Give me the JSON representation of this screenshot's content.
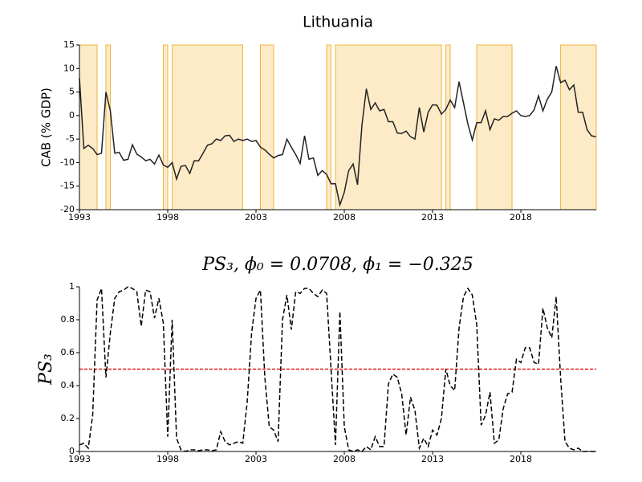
{
  "chart_data": [
    {
      "type": "line",
      "title": "Lithuania",
      "y_label": "CAB (% GDP)",
      "xlim": [
        1993,
        2022.27
      ],
      "xticks": [
        1993,
        1998,
        2003,
        2008,
        2013,
        2018
      ],
      "ylim": [
        -20,
        15
      ],
      "yticks": [
        -20,
        -15,
        -10,
        -5,
        0,
        5,
        10,
        15
      ],
      "shade_color": "#fdebc8",
      "shade_edge_color": "#f0b43c",
      "shaded_regions": [
        [
          1993,
          1994
        ],
        [
          1994.5,
          1994.75
        ],
        [
          1997.75,
          1998
        ],
        [
          1998.25,
          2002.25
        ],
        [
          2003.25,
          2004
        ],
        [
          2007,
          2007.25
        ],
        [
          2007.5,
          2013.5
        ],
        [
          2013.75,
          2014
        ],
        [
          2015.5,
          2017.5
        ],
        [
          2020.25,
          2022.27
        ]
      ],
      "x": [
        1993,
        1993.25,
        1993.5,
        1993.75,
        1994,
        1994.25,
        1994.5,
        1994.75,
        1995,
        1995.25,
        1995.5,
        1995.75,
        1996,
        1996.25,
        1996.5,
        1996.75,
        1997,
        1997.25,
        1997.5,
        1997.75,
        1998,
        1998.25,
        1998.5,
        1998.75,
        1999,
        1999.25,
        1999.5,
        1999.75,
        2000,
        2000.25,
        2000.5,
        2000.75,
        2001,
        2001.25,
        2001.5,
        2001.75,
        2002,
        2002.25,
        2002.5,
        2002.75,
        2003,
        2003.25,
        2003.5,
        2003.75,
        2004,
        2004.25,
        2004.5,
        2004.75,
        2005,
        2005.25,
        2005.5,
        2005.75,
        2006,
        2006.25,
        2006.5,
        2006.75,
        2007,
        2007.25,
        2007.5,
        2007.75,
        2008,
        2008.25,
        2008.5,
        2008.75,
        2009,
        2009.25,
        2009.5,
        2009.75,
        2010,
        2010.25,
        2010.5,
        2010.75,
        2011,
        2011.25,
        2011.5,
        2011.75,
        2012,
        2012.25,
        2012.5,
        2012.75,
        2013,
        2013.25,
        2013.5,
        2013.75,
        2014,
        2014.25,
        2014.5,
        2014.75,
        2015,
        2015.25,
        2015.5,
        2015.75,
        2016,
        2016.25,
        2016.5,
        2016.75,
        2017,
        2017.25,
        2017.5,
        2017.75,
        2018,
        2018.25,
        2018.5,
        2018.75,
        2019,
        2019.25,
        2019.5,
        2019.75,
        2020,
        2020.25,
        2020.5,
        2020.75,
        2021,
        2021.25,
        2021.5,
        2021.75,
        2022,
        2022.25
      ],
      "series": [
        {
          "color": "#222222",
          "dash": false,
          "values": [
            8,
            -7,
            -6.3,
            -7,
            -8.3,
            -8,
            5,
            1,
            -8,
            -7.8,
            -9.5,
            -9.3,
            -6.2,
            -8.2,
            -8.8,
            -9.6,
            -9.3,
            -10.3,
            -8.4,
            -10.5,
            -11,
            -10,
            -13.5,
            -10.8,
            -10.6,
            -12.3,
            -9.6,
            -9.6,
            -8,
            -6.3,
            -6,
            -5,
            -5.3,
            -4.3,
            -4.2,
            -5.5,
            -5,
            -5.3,
            -5,
            -5.5,
            -5.3,
            -6.7,
            -7.3,
            -8.2,
            -9,
            -8.5,
            -8.3,
            -5,
            -6.7,
            -8.3,
            -10.2,
            -4.3,
            -9.3,
            -9,
            -12.7,
            -11.7,
            -12.5,
            -14.5,
            -14.5,
            -19,
            -16.3,
            -11.7,
            -10.3,
            -14.7,
            -2,
            5.7,
            1.3,
            2.7,
            1,
            1.3,
            -1.3,
            -1.3,
            -3.7,
            -3.8,
            -3.3,
            -4.5,
            -5,
            1.7,
            -3.5,
            0.7,
            2.3,
            2.2,
            0.3,
            1.3,
            3.3,
            1.7,
            7.2,
            2.7,
            -1.8,
            -5.2,
            -1.5,
            -1.5,
            1,
            -3,
            -0.7,
            -1,
            -0.2,
            -0.2,
            0.5,
            1,
            0,
            -0.2,
            0,
            1.2,
            4.2,
            1,
            3.5,
            5,
            10.5,
            7,
            7.5,
            5.5,
            6.5,
            0.7,
            0.7,
            -3,
            -4.3,
            -4.5
          ]
        }
      ]
    },
    {
      "type": "line",
      "title": "PS₃, ϕ₀ = 0.0708, ϕ₁ = −0.325",
      "y_label": "PS₃",
      "xlim": [
        1993,
        2022.27
      ],
      "xticks": [
        1993,
        1998,
        2003,
        2008,
        2013,
        2018
      ],
      "ylim": [
        0,
        1
      ],
      "yticks": [
        0,
        0.2,
        0.4,
        0.6,
        0.8,
        1
      ],
      "hline": 0.5,
      "hline_color": "#e41a1c",
      "x": [
        1993,
        1993.25,
        1993.5,
        1993.75,
        1994,
        1994.25,
        1994.5,
        1994.75,
        1995,
        1995.25,
        1995.5,
        1995.75,
        1996,
        1996.25,
        1996.5,
        1996.75,
        1997,
        1997.25,
        1997.5,
        1997.75,
        1998,
        1998.25,
        1998.5,
        1998.75,
        1999,
        1999.25,
        1999.5,
        1999.75,
        2000,
        2000.25,
        2000.5,
        2000.75,
        2001,
        2001.25,
        2001.5,
        2001.75,
        2002,
        2002.25,
        2002.5,
        2002.75,
        2003,
        2003.25,
        2003.5,
        2003.75,
        2004,
        2004.25,
        2004.5,
        2004.75,
        2005,
        2005.25,
        2005.5,
        2005.75,
        2006,
        2006.25,
        2006.5,
        2006.75,
        2007,
        2007.25,
        2007.5,
        2007.75,
        2008,
        2008.25,
        2008.5,
        2008.75,
        2009,
        2009.25,
        2009.5,
        2009.75,
        2010,
        2010.25,
        2010.5,
        2010.75,
        2011,
        2011.25,
        2011.5,
        2011.75,
        2012,
        2012.25,
        2012.5,
        2012.75,
        2013,
        2013.25,
        2013.5,
        2013.75,
        2014,
        2014.25,
        2014.5,
        2014.75,
        2015,
        2015.25,
        2015.5,
        2015.75,
        2016,
        2016.25,
        2016.5,
        2016.75,
        2017,
        2017.25,
        2017.5,
        2017.75,
        2018,
        2018.25,
        2018.5,
        2018.75,
        2019,
        2019.25,
        2019.5,
        2019.75,
        2020,
        2020.25,
        2020.5,
        2020.75,
        2021,
        2021.25,
        2021.5,
        2021.75,
        2022,
        2022.25
      ],
      "series": [
        {
          "color": "#000000",
          "dash": true,
          "values": [
            0.04,
            0.05,
            0.02,
            0.22,
            0.92,
            0.99,
            0.45,
            0.72,
            0.93,
            0.97,
            0.98,
            1,
            0.99,
            0.97,
            0.76,
            0.98,
            0.97,
            0.81,
            0.93,
            0.78,
            0.09,
            0.8,
            0.08,
            0.01,
            0,
            0.01,
            0.01,
            0.005,
            0.01,
            0.01,
            0.005,
            0.01,
            0.12,
            0.06,
            0.04,
            0.05,
            0.06,
            0.05,
            0.3,
            0.72,
            0.93,
            0.98,
            0.45,
            0.15,
            0.13,
            0.06,
            0.8,
            0.95,
            0.74,
            0.97,
            0.96,
            0.99,
            0.99,
            0.96,
            0.94,
            0.98,
            0.96,
            0.5,
            0.04,
            0.85,
            0.15,
            0.01,
            0,
            0.01,
            0,
            0.03,
            0.01,
            0.09,
            0.03,
            0.03,
            0.41,
            0.47,
            0.45,
            0.35,
            0.1,
            0.33,
            0.25,
            0.02,
            0.08,
            0.03,
            0.13,
            0.1,
            0.2,
            0.5,
            0.4,
            0.37,
            0.75,
            0.94,
            0.99,
            0.95,
            0.77,
            0.16,
            0.22,
            0.36,
            0.05,
            0.07,
            0.26,
            0.35,
            0.36,
            0.56,
            0.54,
            0.63,
            0.63,
            0.54,
            0.53,
            0.87,
            0.75,
            0.69,
            0.94,
            0.45,
            0.06,
            0.02,
            0.01,
            0.02,
            0,
            0,
            0,
            0
          ]
        }
      ]
    }
  ]
}
